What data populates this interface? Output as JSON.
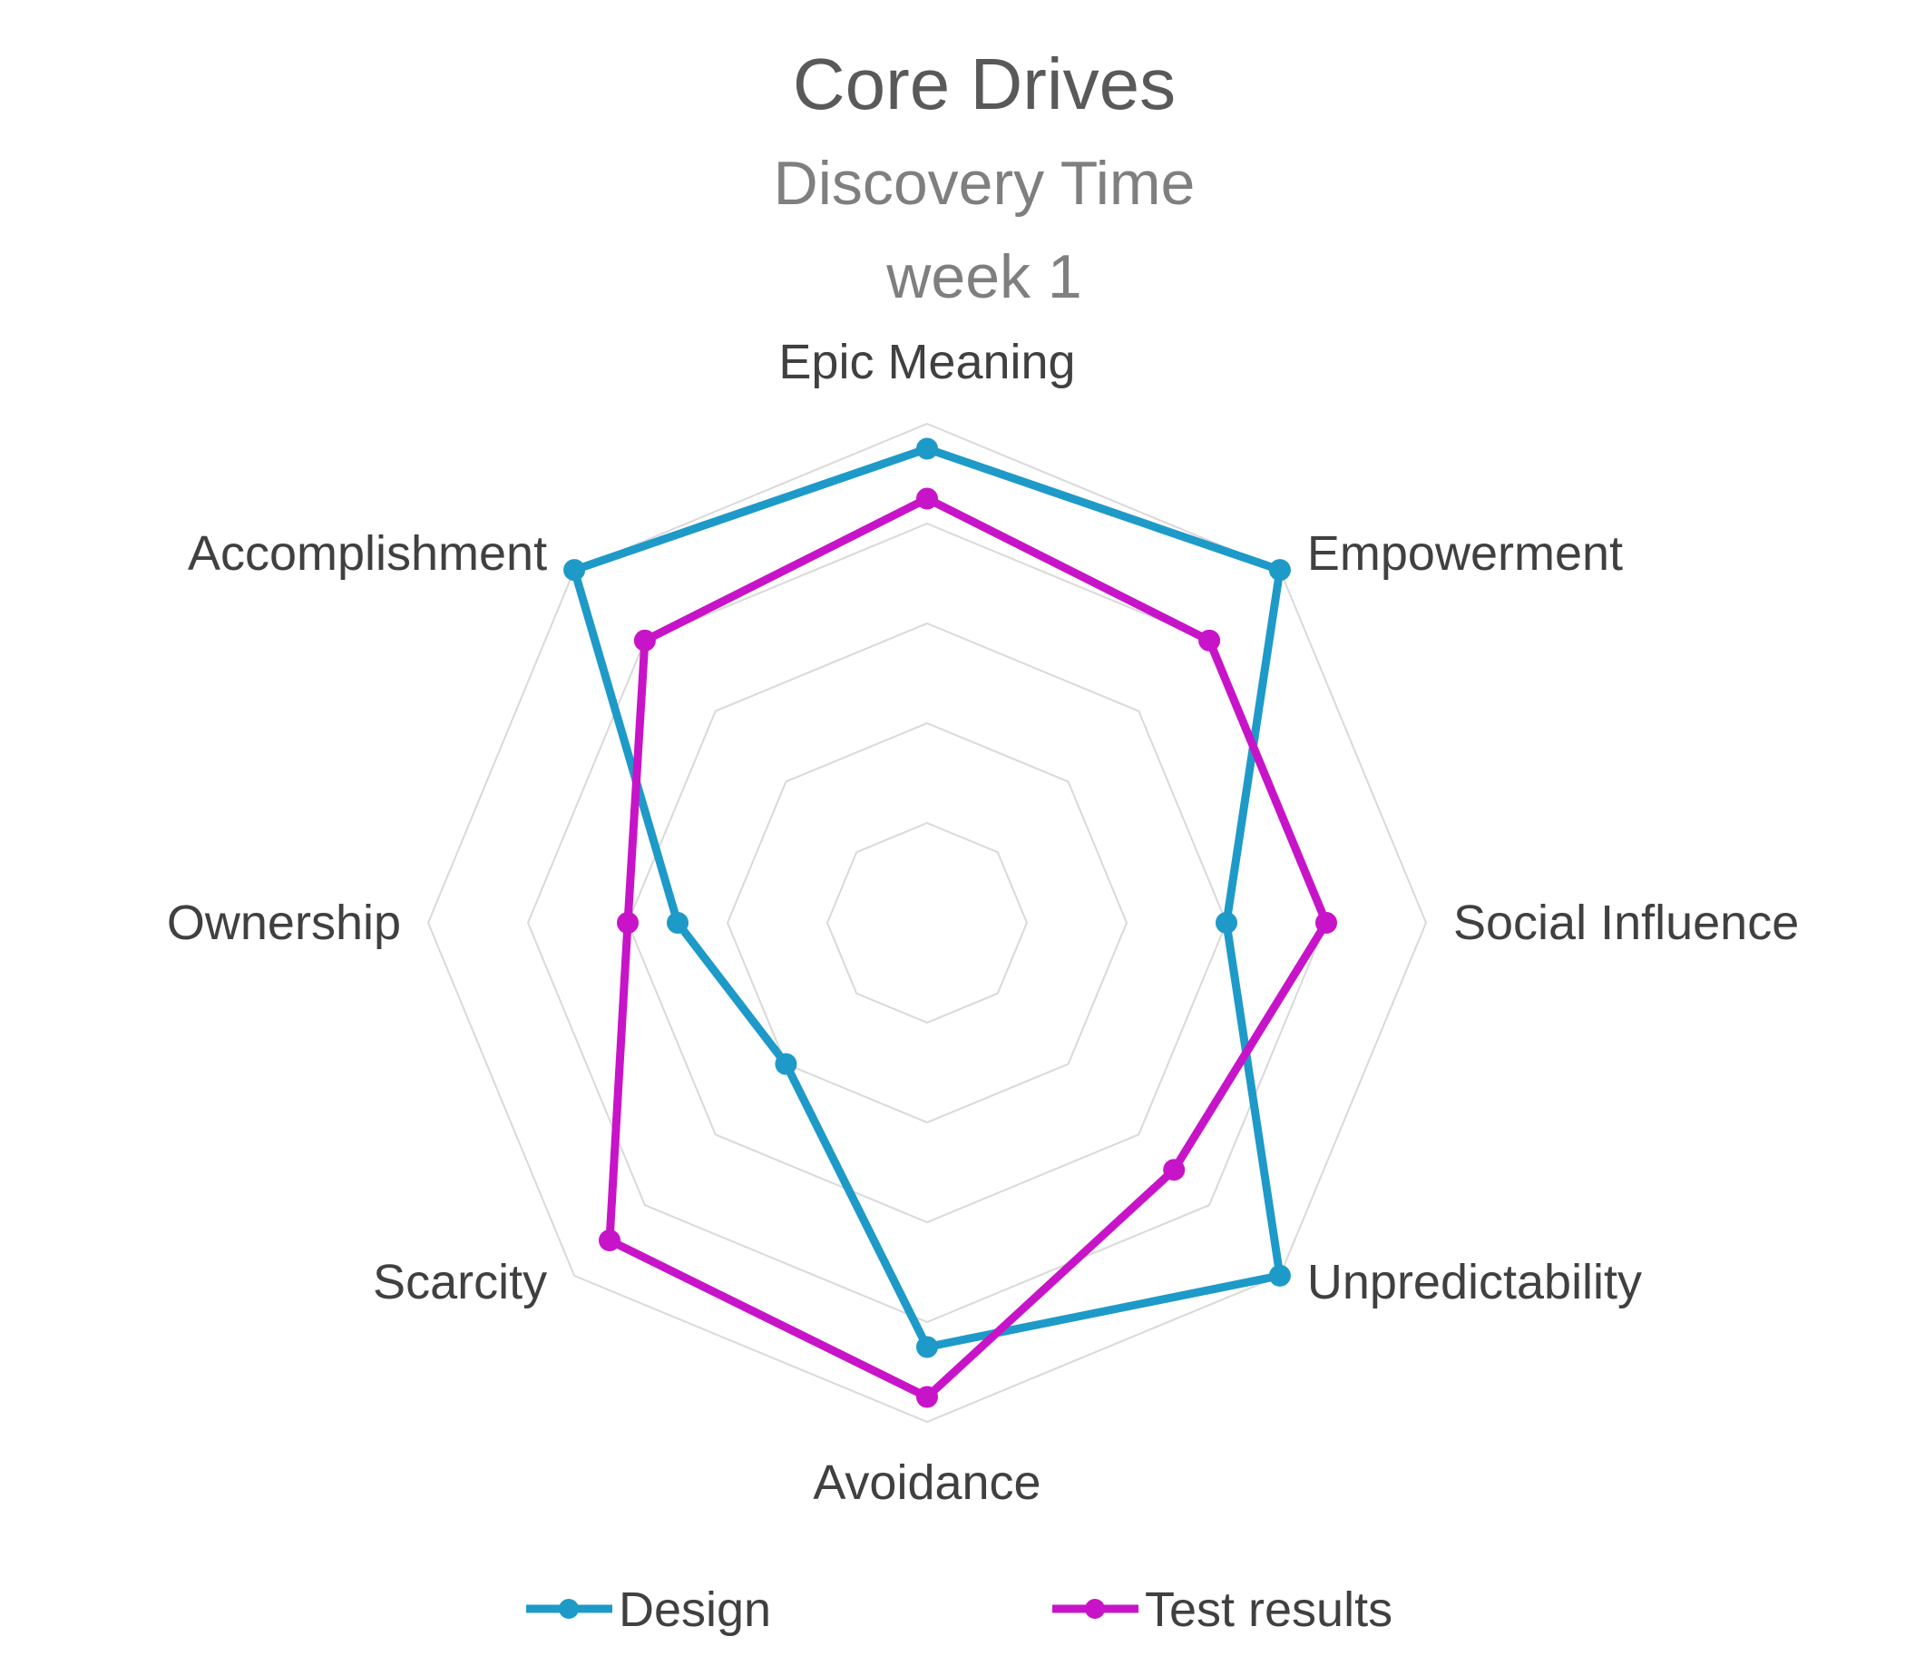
{
  "chart_data": {
    "type": "radar",
    "title": "Core Drives",
    "subtitle_lines": [
      "Discovery Time",
      "week 1"
    ],
    "categories": [
      "Epic Meaning",
      "Empowerment",
      "Social Influence",
      "Unpredictability",
      "Avoidance",
      "Scarcity",
      "Ownership",
      "Accomplishment"
    ],
    "rlim": [
      0,
      5
    ],
    "rings": 5,
    "grid": true,
    "legend_position": "bottom",
    "series": [
      {
        "name": "Design",
        "color": "#1E9AC8",
        "values": [
          4.75,
          5,
          3,
          5,
          4.25,
          2,
          2.5,
          5
        ]
      },
      {
        "name": "Test results",
        "color": "#C814C8",
        "values": [
          4.25,
          4,
          4,
          3.5,
          4.75,
          4.5,
          3,
          4
        ]
      }
    ]
  }
}
